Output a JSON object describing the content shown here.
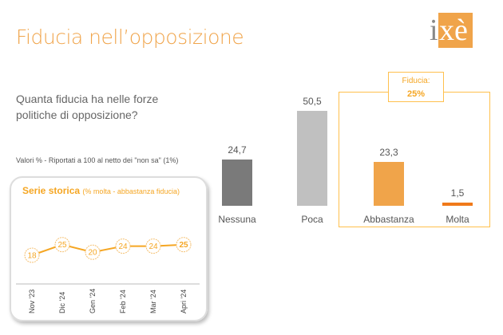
{
  "title": "Fiducia nell’opposizione",
  "logo": "ixè",
  "question": "Quanta fiducia ha nelle forze politiche di opposizione?",
  "note": "Valori % - Riportati a 100 al netto dei \"non sa\" (1%)",
  "fiducia_badge": {
    "label": "Fiducia:",
    "value": "25%"
  },
  "colors": {
    "orange": "#f0a44a",
    "dark": "#7a7a7a",
    "light": "#c0c0c0",
    "line": "#f5a623"
  },
  "chart_data": [
    {
      "type": "bar",
      "categories": [
        "Nessuna",
        "Poca",
        "Abbastanza",
        "Molta"
      ],
      "values": [
        24.7,
        50.5,
        23.3,
        1.5
      ],
      "labels": [
        "24,7",
        "50,5",
        "23,3",
        "1,5"
      ]
    },
    {
      "type": "line",
      "title": "Serie storica",
      "subtitle": "(% molta - abbastanza fiducia)",
      "categories": [
        "Nov '23",
        "Dic '24",
        "Gen '24",
        "Feb '24",
        "Mar '24",
        "Apri '24"
      ],
      "values": [
        18,
        25,
        20,
        24,
        24,
        25
      ]
    }
  ]
}
